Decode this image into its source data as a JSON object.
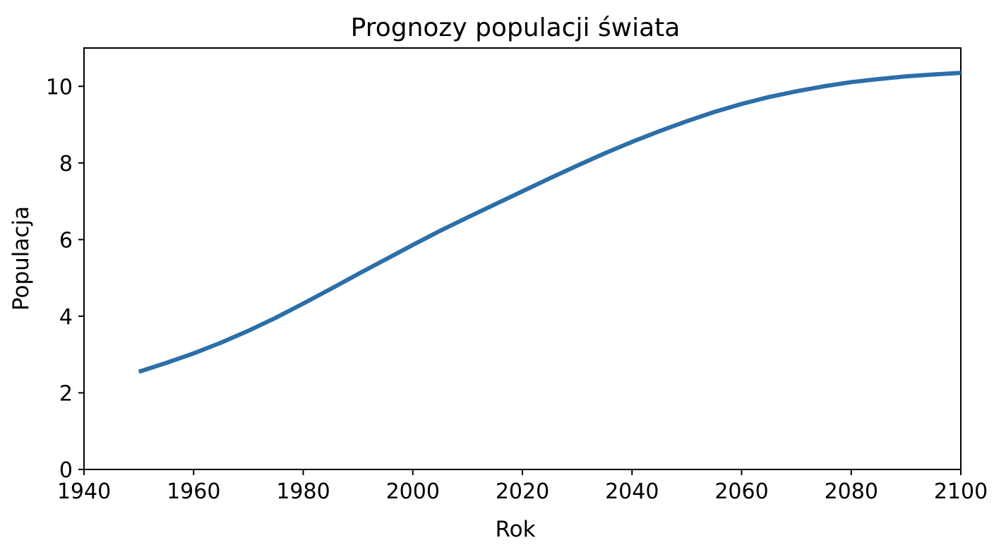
{
  "chart_data": {
    "type": "line",
    "title": "Prognozy populacji świata",
    "xlabel": "Rok",
    "ylabel": "Populacja",
    "xlim": [
      1940,
      2100
    ],
    "ylim": [
      0,
      11
    ],
    "xticks": [
      1940,
      1960,
      1980,
      2000,
      2020,
      2040,
      2060,
      2080,
      2100
    ],
    "yticks": [
      0,
      2,
      4,
      6,
      8,
      10
    ],
    "grid": false,
    "series": [
      {
        "color": "#2c6fa8",
        "x": [
          1950,
          1955,
          1960,
          1965,
          1970,
          1975,
          1980,
          1985,
          1990,
          1995,
          2000,
          2005,
          2010,
          2015,
          2020,
          2025,
          2030,
          2035,
          2040,
          2045,
          2050,
          2055,
          2060,
          2065,
          2070,
          2075,
          2080,
          2085,
          2090,
          2095,
          2100
        ],
        "y": [
          2.55,
          2.78,
          3.03,
          3.31,
          3.62,
          3.96,
          4.33,
          4.71,
          5.1,
          5.48,
          5.86,
          6.23,
          6.58,
          6.92,
          7.26,
          7.6,
          7.93,
          8.25,
          8.55,
          8.83,
          9.09,
          9.33,
          9.54,
          9.72,
          9.87,
          10.0,
          10.11,
          10.19,
          10.26,
          10.31,
          10.35
        ]
      }
    ]
  }
}
